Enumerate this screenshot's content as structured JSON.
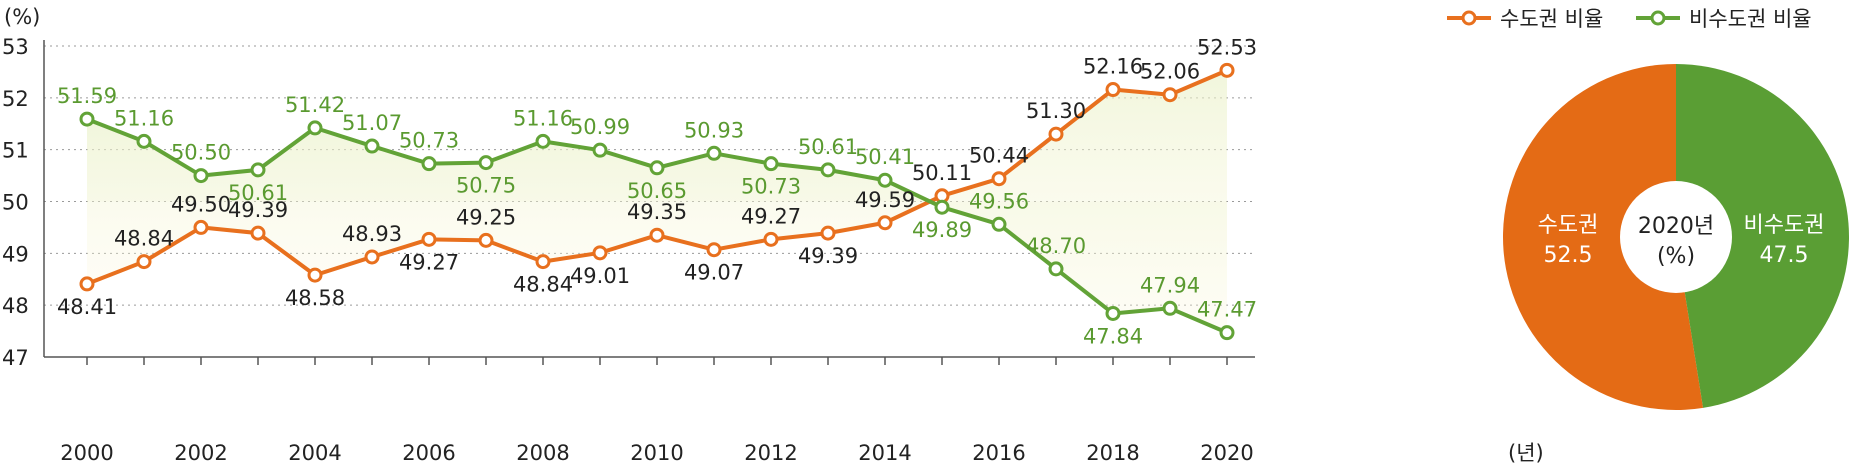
{
  "chart_data": [
    {
      "type": "line",
      "y_unit": "(%)",
      "x_unit": "(년)",
      "x": [
        2000,
        2001,
        2002,
        2003,
        2004,
        2005,
        2006,
        2007,
        2008,
        2009,
        2010,
        2011,
        2012,
        2013,
        2014,
        2015,
        2016,
        2017,
        2018,
        2019,
        2020
      ],
      "x_tick_labels": [
        "2000",
        "2002",
        "2004",
        "2006",
        "2008",
        "2010",
        "2012",
        "2014",
        "2016",
        "2018",
        "2020"
      ],
      "ylim": [
        47,
        53
      ],
      "y_ticks": [
        47,
        48,
        49,
        50,
        51,
        52,
        53
      ],
      "grid": true,
      "legend": "top-right",
      "series": [
        {
          "name": "수도권 비율",
          "color": "#e8701e",
          "values": [
            48.41,
            48.84,
            49.5,
            49.39,
            48.58,
            48.93,
            49.27,
            49.25,
            48.84,
            49.01,
            49.35,
            49.07,
            49.27,
            49.39,
            49.59,
            50.11,
            50.44,
            51.3,
            52.16,
            52.06,
            52.53
          ],
          "labels": [
            "48.41",
            "48.84",
            "49.50",
            "49.39",
            "48.58",
            "48.93",
            "49.27",
            "49.25",
            "48.84",
            "49.01",
            "49.35",
            "49.07",
            "49.27",
            "49.39",
            "49.59",
            "50.11",
            "50.44",
            "51.30",
            "52.16",
            "52.06",
            "52.53"
          ]
        },
        {
          "name": "비수도권 비율",
          "color": "#62a337",
          "values": [
            51.59,
            51.16,
            50.5,
            50.61,
            51.42,
            51.07,
            50.73,
            50.75,
            51.16,
            50.99,
            50.65,
            50.93,
            50.73,
            50.61,
            50.41,
            49.89,
            49.56,
            48.7,
            47.84,
            47.94,
            47.47
          ],
          "labels": [
            "51.59",
            "51.16",
            "50.50",
            "50.61",
            "51.42",
            "51.07",
            "50.73",
            "50.75",
            "51.16",
            "50.99",
            "50.65",
            "50.93",
            "50.73",
            "50.61",
            "50.41",
            "49.89",
            "49.56",
            "48.70",
            "47.84",
            "47.94",
            "47.47"
          ]
        }
      ]
    },
    {
      "type": "pie",
      "center_title": "2020년",
      "center_unit": "(%)",
      "slices": [
        {
          "name": "수도권",
          "value": 52.5,
          "label": "52.5",
          "color": "#e46b15"
        },
        {
          "name": "비수도권",
          "value": 47.5,
          "label": "47.5",
          "color": "#5a9e34"
        }
      ]
    }
  ]
}
